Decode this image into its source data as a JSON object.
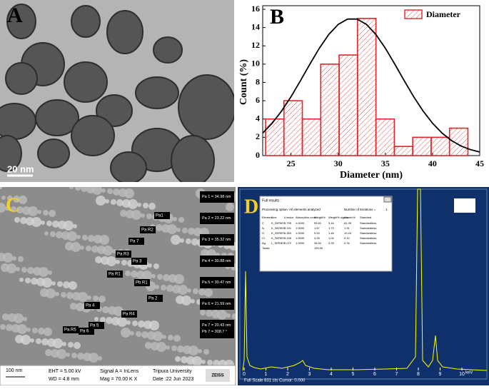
{
  "chart_data": {
    "type": "histogram",
    "panel_label": "B",
    "xlabel": "Diameter (nm)",
    "ylabel": "Count (%)",
    "bins": [
      22.3,
      24.25,
      26.2,
      28.15,
      30.1,
      32.05,
      34.0,
      35.95,
      37.9,
      39.85,
      41.8,
      43.75
    ],
    "series": [
      {
        "name": "Diameter",
        "color": "#e0262b",
        "values": [
          4,
          6,
          4,
          10,
          11,
          15,
          4,
          1,
          2,
          2,
          3
        ]
      }
    ],
    "curve": {
      "color": "#000000",
      "x": [
        22,
        23,
        24,
        25,
        26,
        27,
        28,
        29,
        30,
        31,
        32,
        33,
        34,
        35,
        36,
        37,
        38,
        39,
        40,
        41,
        42,
        43,
        44,
        45
      ],
      "y": [
        2.47,
        3.54,
        4.87,
        6.44,
        8.19,
        10.0,
        11.74,
        13.24,
        14.34,
        14.93,
        14.93,
        14.34,
        13.24,
        11.74,
        10.0,
        8.19,
        6.44,
        4.87,
        3.54,
        2.47,
        1.65,
        1.06,
        0.66,
        0.39
      ]
    },
    "xlim": [
      22,
      45
    ],
    "xticks": [
      25,
      30,
      35,
      40,
      45
    ],
    "ylim": [
      0,
      16
    ],
    "yticks": [
      0,
      2,
      4,
      6,
      8,
      10,
      12,
      14,
      16
    ],
    "legend": "upper right"
  },
  "panel_a": {
    "label": "A",
    "scale_bar": "20 nm"
  },
  "panel_c": {
    "label": "C",
    "measurements": [
      "Pa 1 = 34.98 nm",
      "Pa 2 = 23.22 nm",
      "Pa 3 = 35.32 nm",
      "Pa 4 = 30.88 nm",
      "Pa 5 = 30.47 nm",
      "Pa 6 = 21.59 nm",
      "Pa 7 = 20.43 nm\nPb 7 = 308.7 °"
    ],
    "markers": [
      "Pa1",
      "Pa R2",
      "Pa 7",
      "Pa R3",
      "Pa 3",
      "Pa R1",
      "Pb R1",
      "Pa 2",
      "Pa 4",
      "Pa R4",
      "Pa 5",
      "Pa 6",
      "Pa R5"
    ],
    "info": {
      "scale_bar": "100 nm",
      "eht": "EHT = 5.00 kV",
      "wd": "WD = 4.8 mm",
      "signal": "Signal A = InLens",
      "mag": "Mag =  70.00 K X",
      "institution": "Tripura University",
      "date": "Date :22 Jun 2023",
      "brand": "ZEISS"
    }
  },
  "panel_d": {
    "label": "D",
    "results_title": "Full results :",
    "processing": "Processing option :",
    "processing_value": "All elements analyzed",
    "iterations": "Number of iterations =",
    "iterations_value": "1",
    "table": {
      "header": [
        "Element",
        "Line",
        "k factor",
        "Absorption corrn.",
        "Weight%",
        "Weight% sigma",
        "Atomic%",
        "Standard"
      ],
      "rows": [
        [
          "C",
          "K_SERIES",
          "1.799",
          "1.0000",
          "55.82",
          "3.16",
          "81.35",
          "Standardless"
        ],
        [
          "N",
          "K_SERIES",
          "2.191",
          "1.0000",
          "1.67",
          "1.73",
          "1.31",
          "Standardless"
        ],
        [
          "O",
          "K_SERIES",
          "1.353",
          "1.0000",
          "9.53",
          "1.46",
          "10.43",
          "Standardless"
        ],
        [
          "Cl",
          "K_SERIES",
          "1.155",
          "1.0000",
          "4.25",
          "1.04",
          "2.10",
          "Standardless"
        ],
        [
          "Ag",
          "L_SERIES",
          "2.072",
          "1.0000",
          "28.34",
          "3.25",
          "4.76",
          "Standardless"
        ],
        [
          "Totals",
          "",
          "",
          "",
          "100.00",
          "",
          "",
          ""
        ]
      ]
    },
    "xticks": [
      "0",
      "1",
      "2",
      "3",
      "4",
      "5",
      "6",
      "7",
      "8",
      "9",
      "10"
    ],
    "unit": "keV",
    "footer": "Full Scale 831 cts Cursor: 0.000"
  }
}
